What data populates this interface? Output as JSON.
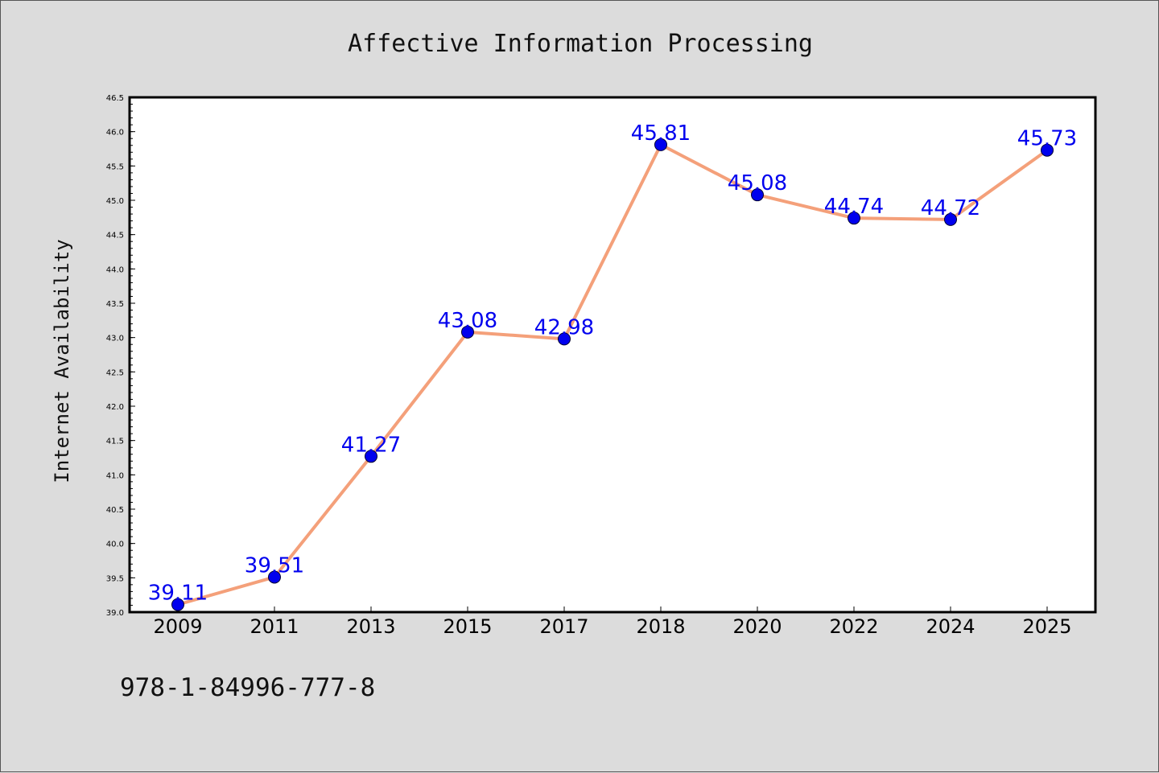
{
  "chart_data": {
    "type": "line",
    "title": "Affective Information Processing",
    "xlabel": "",
    "ylabel": "Internet Availability",
    "categories": [
      "2009",
      "2011",
      "2013",
      "2015",
      "2017",
      "2018",
      "2020",
      "2022",
      "2024",
      "2025"
    ],
    "series": [
      {
        "values": [
          39.11,
          39.51,
          41.27,
          43.08,
          42.98,
          45.81,
          45.08,
          44.74,
          44.72,
          45.73
        ],
        "labels": [
          "39.11",
          "39.51",
          "41.27",
          "43.08",
          "42.98",
          "45.81",
          "45.08",
          "44.74",
          "44.72",
          "45.73"
        ]
      }
    ],
    "ylim": [
      39.0,
      46.5
    ],
    "yticks": [
      "39.0",
      "39.5",
      "40.0",
      "40.5",
      "41.0",
      "41.5",
      "42.0",
      "42.5",
      "43.0",
      "43.5",
      "44.0",
      "44.5",
      "45.0",
      "45.5",
      "46.0",
      "46.5"
    ],
    "grid": false,
    "colors": {
      "line": "#f4a07a",
      "marker": "#0000ee",
      "data_label": "#0000ee",
      "background": "#dcdcdc",
      "plot_area": "#ffffff"
    }
  },
  "annotation": {
    "isbn": "978-1-84996-777-8"
  }
}
